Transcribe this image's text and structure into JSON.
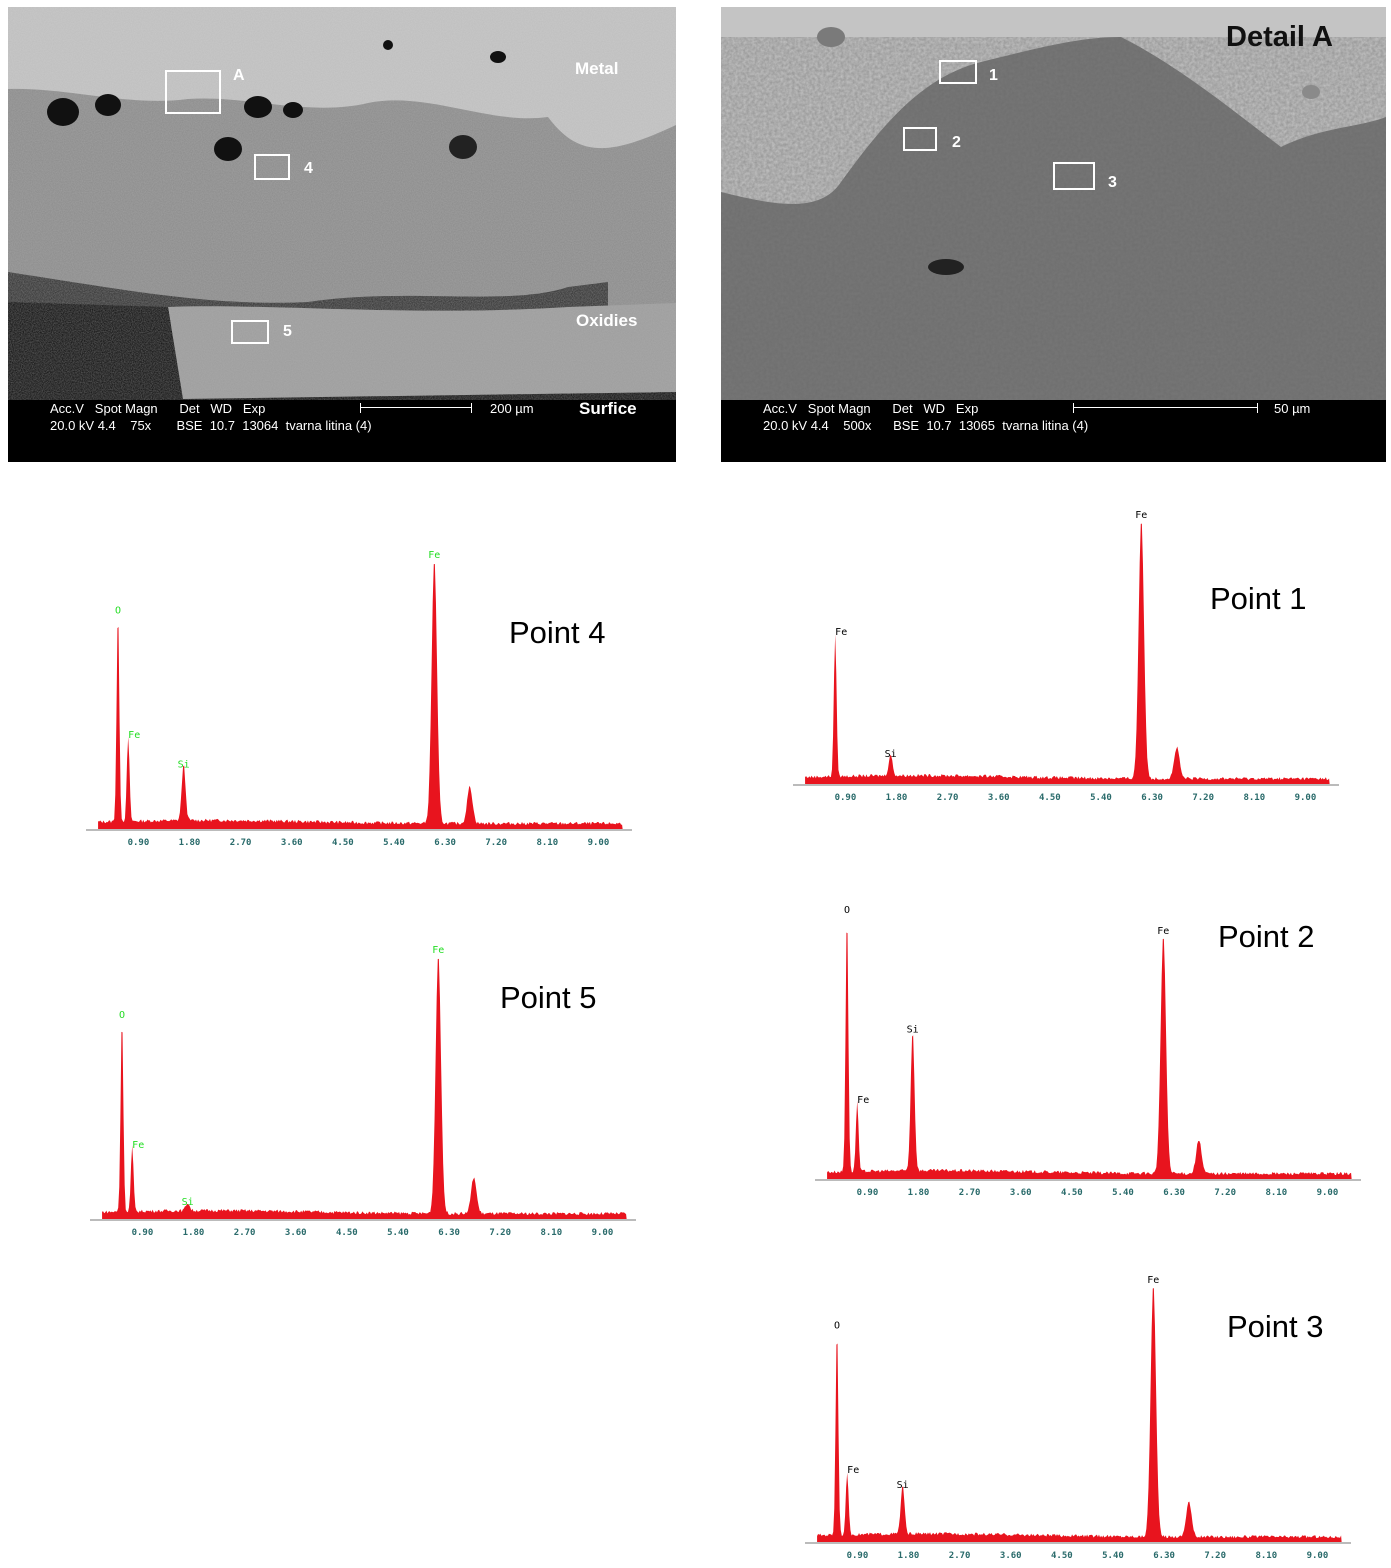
{
  "figures": {
    "left_sem": {
      "labels": {
        "metal": "Metal",
        "oxidies": "Oxidies",
        "surfice": "Surfice"
      },
      "rois": [
        {
          "id": "A"
        },
        {
          "id": "4"
        },
        {
          "id": "5"
        }
      ],
      "databar": {
        "header": "Acc.V   Spot Magn      Det   WD   Exp",
        "values": "20.0 kV 4.4    75x       BSE  10.7  13064  tvarna litina (4)",
        "scale": "200 µm"
      }
    },
    "right_sem": {
      "labels": {
        "title": "Detail A"
      },
      "rois": [
        {
          "id": "1"
        },
        {
          "id": "2"
        },
        {
          "id": "3"
        }
      ],
      "databar": {
        "header": "Acc.V   Spot Magn      Det   WD   Exp",
        "values": "20.0 kV 4.4    500x      BSE  10.7  13065  tvarna litina (4)",
        "scale": "50 µm"
      }
    }
  },
  "chart_data": [
    {
      "type": "line",
      "title": "Point 4",
      "x_tick_labels": [
        "0.90",
        "1.80",
        "2.70",
        "3.60",
        "4.50",
        "5.40",
        "6.30",
        "7.20",
        "8.10",
        "9.00"
      ],
      "peak_label_color": "#22dd22",
      "peaks": [
        {
          "label": "O",
          "x": 0.52,
          "height": 0.79
        },
        {
          "label": "Fe",
          "x": 0.71,
          "height": 0.32
        },
        {
          "label": "Si",
          "x": 1.74,
          "height": 0.21
        },
        {
          "label": "Fe",
          "x": 6.4,
          "height": 1.0
        },
        {
          "label": "",
          "x": 7.06,
          "height": 0.14
        }
      ]
    },
    {
      "type": "line",
      "title": "Point 5",
      "x_tick_labels": [
        "0.90",
        "1.80",
        "2.70",
        "3.60",
        "4.50",
        "5.40",
        "6.30",
        "7.20",
        "8.10",
        "9.00"
      ],
      "peak_label_color": "#22dd22",
      "peaks": [
        {
          "label": "O",
          "x": 0.52,
          "height": 0.75
        },
        {
          "label": "Fe",
          "x": 0.71,
          "height": 0.25
        },
        {
          "label": "Si",
          "x": 1.74,
          "height": 0.03
        },
        {
          "label": "Fe",
          "x": 6.4,
          "height": 1.0
        },
        {
          "label": "",
          "x": 7.06,
          "height": 0.14
        }
      ]
    },
    {
      "type": "line",
      "title": "Point 1",
      "x_tick_labels": [
        "0.90",
        "1.80",
        "2.70",
        "3.60",
        "4.50",
        "5.40",
        "6.30",
        "7.20",
        "8.10",
        "9.00"
      ],
      "peak_label_color": "#000000",
      "peaks": [
        {
          "label": "Fe",
          "x": 0.71,
          "height": 0.55
        },
        {
          "label": "Si",
          "x": 1.74,
          "height": 0.08
        },
        {
          "label": "Fe",
          "x": 6.4,
          "height": 1.0
        },
        {
          "label": "",
          "x": 7.06,
          "height": 0.12
        }
      ]
    },
    {
      "type": "line",
      "title": "Point 2",
      "x_tick_labels": [
        "0.90",
        "1.80",
        "2.70",
        "3.60",
        "4.50",
        "5.40",
        "6.30",
        "7.20",
        "8.10",
        "9.00"
      ],
      "peak_label_color": "#000000",
      "peaks": [
        {
          "label": "O",
          "x": 0.52,
          "height": 1.0
        },
        {
          "label": "Fe",
          "x": 0.71,
          "height": 0.27
        },
        {
          "label": "Si",
          "x": 1.74,
          "height": 0.54
        },
        {
          "label": "Fe",
          "x": 6.4,
          "height": 0.92
        },
        {
          "label": "",
          "x": 7.06,
          "height": 0.13
        }
      ]
    },
    {
      "type": "line",
      "title": "Point 3",
      "x_tick_labels": [
        "0.90",
        "1.80",
        "2.70",
        "3.60",
        "4.50",
        "5.40",
        "6.30",
        "7.20",
        "8.10",
        "9.00"
      ],
      "peak_label_color": "#000000",
      "peaks": [
        {
          "label": "O",
          "x": 0.52,
          "height": 0.82
        },
        {
          "label": "Fe",
          "x": 0.71,
          "height": 0.25
        },
        {
          "label": "Si",
          "x": 1.74,
          "height": 0.19
        },
        {
          "label": "Fe",
          "x": 6.4,
          "height": 1.0
        },
        {
          "label": "",
          "x": 7.06,
          "height": 0.14
        }
      ]
    }
  ]
}
